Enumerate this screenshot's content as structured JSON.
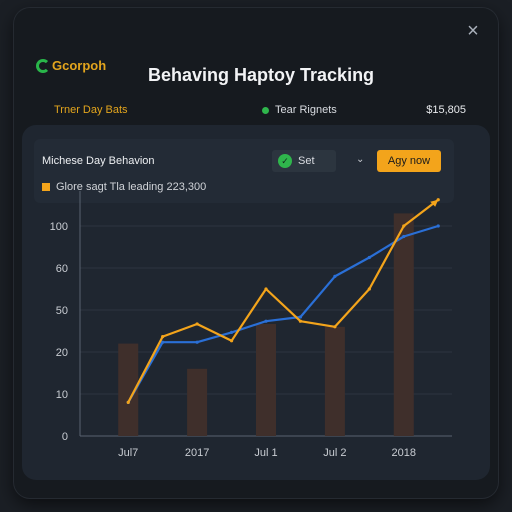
{
  "window": {
    "close_icon": "close-icon"
  },
  "header": {
    "logo_text": "Gcorpoh",
    "logo_icon": "logo-ring-icon",
    "title": "Behaving Haptoy Tracking"
  },
  "stats": {
    "label": "Trner Day Bats",
    "mid_label": "Tear Rignets",
    "value": "$15,805"
  },
  "panel": {
    "title": "Michese Day Behavion",
    "set_label": "Set",
    "set_icon": "check-icon",
    "chevron_icon": "chevron-down-icon",
    "apply_label": "Agy now",
    "legend_text": "Glore sagt Tla leading 223,300"
  },
  "colors": {
    "accent_orange": "#f3a41b",
    "line_blue": "#2a6fd6",
    "bar_brown": "#3f2f2b",
    "status_green": "#2fb64c"
  },
  "chart_data": {
    "type": "line",
    "x_tick_labels": [
      "Jul7",
      "2017",
      "Jul 1",
      "Jul 2",
      "2018"
    ],
    "y_tick_labels": [
      "0",
      "10",
      "20",
      "50",
      "60",
      "100"
    ],
    "y_tick_values": [
      0,
      10,
      20,
      50,
      60,
      100
    ],
    "x_values": [
      0,
      0.5,
      1,
      1.5,
      2,
      2.5,
      3,
      3.5,
      4,
      4.5
    ],
    "series": [
      {
        "color": "#2a6fd6",
        "values": [
          8,
          27,
          27,
          34,
          42,
          45,
          58,
          70,
          90,
          100
        ]
      },
      {
        "color": "#f3a41b",
        "values": [
          8,
          31,
          40,
          28,
          55,
          42,
          38,
          55,
          100,
          125
        ]
      }
    ],
    "bars": [
      {
        "x": 0,
        "value": 26
      },
      {
        "x": 1,
        "value": 16
      },
      {
        "x": 2,
        "value": 40
      },
      {
        "x": 3,
        "value": 38
      },
      {
        "x": 4,
        "value": 112
      }
    ],
    "ylim": [
      0,
      125
    ],
    "xlim": [
      -0.7,
      4.7
    ],
    "grid": true
  }
}
